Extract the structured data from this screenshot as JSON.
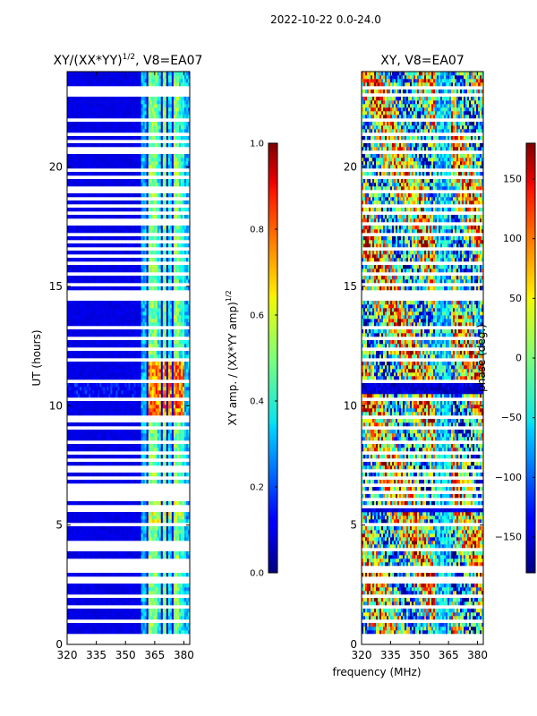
{
  "suptitle": "2022-10-22 0.0-24.0",
  "chart_data": [
    {
      "type": "heatmap",
      "title": "XY/(XX*YY)",
      "title_exp": "1/2",
      "title_suffix": ", V8=EA07",
      "xlabel": "",
      "ylabel": "UT (hours)",
      "xlim": [
        320,
        383
      ],
      "ylim": [
        0,
        24
      ],
      "xticks": [
        320,
        335,
        350,
        365,
        380
      ],
      "yticks": [
        0,
        5,
        10,
        15,
        20
      ],
      "colorbar": {
        "label": "XY amp. / (XX*YY amp)",
        "label_exp": "1/2",
        "range": [
          0.0,
          1.0
        ],
        "ticks": [
          "0.0",
          "0.2",
          "0.4",
          "0.6",
          "0.8",
          "1.0"
        ],
        "tick_values": [
          0.0,
          0.2,
          0.4,
          0.6,
          0.8,
          1.0
        ],
        "colormap": "jet"
      },
      "masked_hours": [
        0.05,
        0.15,
        0.3,
        0.35,
        1.0,
        1.55,
        2.0,
        2.65,
        2.75,
        3.0,
        3.2,
        3.4,
        3.55,
        4.05,
        4.1,
        4.3,
        5.0,
        5.55,
        5.75,
        6.05,
        6.25,
        6.4,
        6.55,
        6.7,
        7.0,
        7.35,
        7.4,
        7.7,
        8.0,
        8.1,
        8.5,
        9.1,
        9.3,
        9.6,
        10.25,
        11.0,
        11.9,
        12.3,
        12.8,
        13.3,
        14.45,
        14.55,
        14.65,
        14.8,
        15.1,
        15.55,
        16.0,
        16.3,
        16.55,
        16.8,
        17.2,
        17.6,
        17.75,
        18.0,
        18.1,
        18.3,
        18.6,
        19.0,
        19.2,
        19.5,
        19.9,
        20.6,
        20.75,
        21.0,
        21.4,
        22.0,
        23.0,
        23.15,
        23.25
      ],
      "amplitude_model": {
        "background": 0.1,
        "rfi_bands_mhz": [
          {
            "range": [
              358,
              361
            ],
            "level": 0.3
          },
          {
            "range": [
              362,
              366
            ],
            "level": 0.5
          },
          {
            "range": [
              366.5,
              368.5
            ],
            "level": 0.38
          },
          {
            "range": [
              369,
              371
            ],
            "level": 0.5
          },
          {
            "range": [
              372,
              374
            ],
            "level": 0.36
          },
          {
            "range": [
              374.5,
              377
            ],
            "level": 0.5
          },
          {
            "range": [
              377.5,
              380
            ],
            "level": 0.4
          },
          {
            "range": [
              380.5,
              383
            ],
            "level": 0.3
          }
        ],
        "bursts": [
          {
            "hours": [
              9.6,
              11.9
            ],
            "mhz": [
              361.5,
              380
            ],
            "level": 0.9
          },
          {
            "hours": [
              4.9,
              6.2
            ],
            "mhz": [
              361.5,
              380
            ],
            "level": 0.7
          },
          {
            "hours": [
              10.4,
              11.0
            ],
            "mhz": [
              320,
              357
            ],
            "level": 0.22
          }
        ]
      }
    },
    {
      "type": "heatmap",
      "title": "XY, V8=EA07",
      "xlabel": "frequency (MHz)",
      "ylabel": "",
      "xlim": [
        320,
        383
      ],
      "ylim": [
        0,
        24
      ],
      "xticks": [
        320,
        335,
        350,
        365,
        380
      ],
      "yticks": [
        0,
        5,
        10,
        15,
        20
      ],
      "colorbar": {
        "label": "phase (deg.)",
        "range": [
          -180,
          180
        ],
        "ticks": [
          "−150",
          "−100",
          "−50",
          "0",
          "50",
          "100",
          "150"
        ],
        "tick_values": [
          -150,
          -100,
          -50,
          0,
          50,
          100,
          150
        ],
        "colormap": "jet"
      },
      "masked_hours": [
        0.1,
        0.15,
        0.3,
        0.35,
        1.0,
        1.55,
        2.0,
        2.65,
        2.75,
        3.0,
        3.2,
        4.05,
        5.0,
        5.75,
        6.05,
        6.4,
        6.7,
        7.0,
        7.35,
        7.7,
        8.0,
        8.5,
        9.1,
        9.6,
        10.25,
        11.0,
        11.9,
        12.3,
        12.8,
        13.3,
        14.45,
        14.65,
        14.8,
        15.1,
        15.55,
        16.0,
        16.55,
        17.2,
        17.6,
        18.0,
        18.3,
        19.0,
        19.5,
        19.9,
        20.6,
        21.0,
        21.4,
        22.0,
        23.0,
        23.25
      ],
      "phase_model": {
        "dark_bands_hours": [
          [
            10.5,
            10.9
          ],
          [
            5.6,
            5.8
          ],
          [
            15.5,
            15.6
          ]
        ],
        "dark_band_level": -170
      }
    }
  ]
}
